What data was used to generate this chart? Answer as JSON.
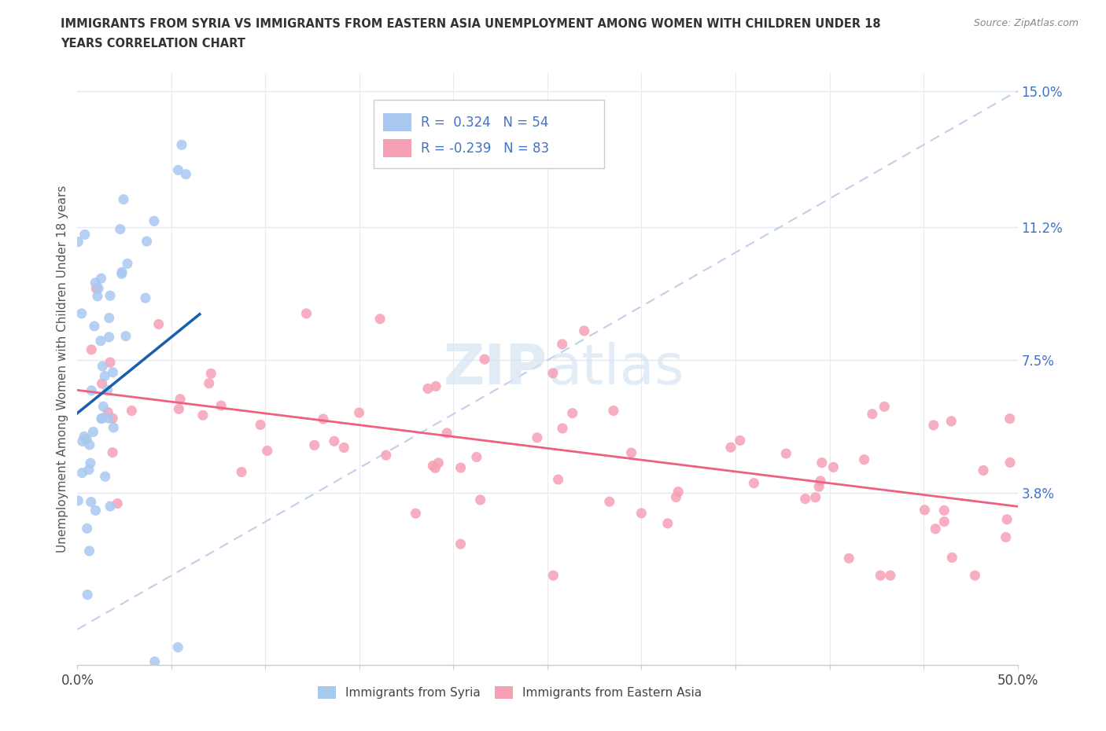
{
  "title_line1": "IMMIGRANTS FROM SYRIA VS IMMIGRANTS FROM EASTERN ASIA UNEMPLOYMENT AMONG WOMEN WITH CHILDREN UNDER 18",
  "title_line2": "YEARS CORRELATION CHART",
  "source": "Source: ZipAtlas.com",
  "ylabel": "Unemployment Among Women with Children Under 18 years",
  "xlim": [
    0.0,
    0.5
  ],
  "ylim": [
    -0.01,
    0.155
  ],
  "ytick_positions": [
    0.038,
    0.075,
    0.112,
    0.15
  ],
  "ytick_labels": [
    "3.8%",
    "7.5%",
    "11.2%",
    "15.0%"
  ],
  "syria_R": 0.324,
  "syria_N": 54,
  "eastern_asia_R": -0.239,
  "eastern_asia_N": 83,
  "syria_color": "#a8c8f0",
  "eastern_asia_color": "#f5a0b5",
  "syria_line_color": "#1a5fad",
  "eastern_asia_line_color": "#f06080",
  "diagonal_color": "#c0d0e8",
  "watermark_color": "#d5e5f5",
  "legend_R_color": "#4472c4",
  "background_color": "#ffffff",
  "grid_h_color": "#e0e8f0",
  "grid_v_color": "#ebebeb",
  "bottom_spine_color": "#cccccc"
}
